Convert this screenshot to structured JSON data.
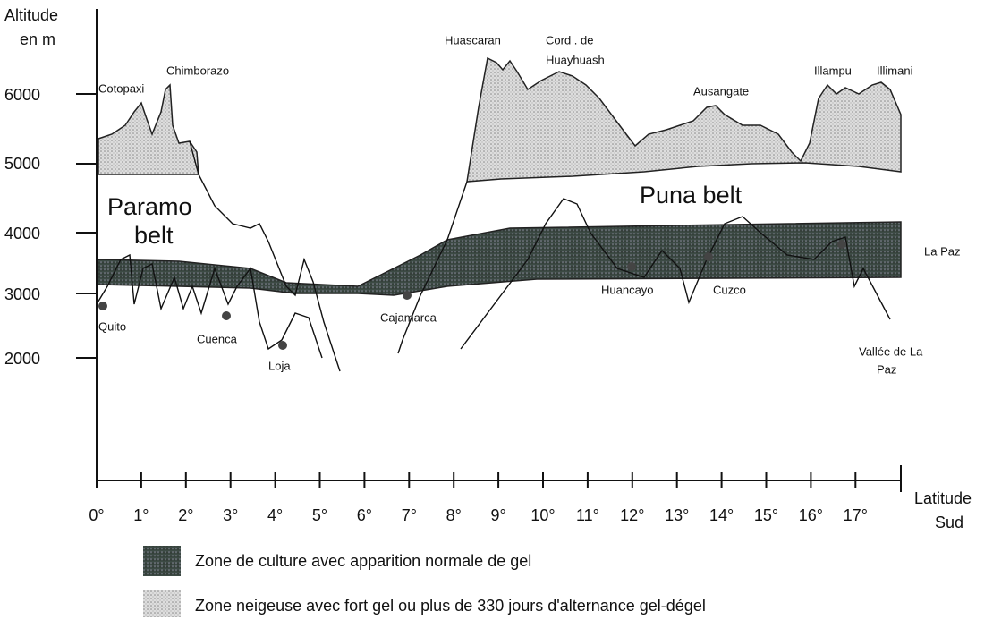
{
  "y_axis": {
    "title_lines": [
      "Altitude",
      "en m"
    ],
    "ticks": [
      "6000",
      "5000",
      "4000",
      "3000",
      "2000"
    ]
  },
  "x_axis": {
    "title_lines": [
      "Latitude",
      "Sud"
    ],
    "ticks": [
      "0°",
      "1°",
      "2°",
      "3°",
      "4°",
      "5°",
      "6°",
      "7°",
      "8°",
      "9°",
      "10°",
      "11°",
      "12°",
      "13°",
      "14°",
      "15°",
      "16°",
      "17°"
    ]
  },
  "peaks": [
    "Cotopaxi",
    "Chimborazo",
    "Huascaran",
    "Cord . de",
    "Huayhuash",
    "Ausangate",
    "Illampu",
    "Illimani"
  ],
  "belts": {
    "paramo": [
      "Paramo",
      "belt"
    ],
    "puna": "Puna belt"
  },
  "places": [
    "La Paz",
    "Quito",
    "Cuenca",
    "Loja",
    "Cajamarca",
    "Huancayo",
    "Cuzco",
    "Vallée de La",
    "Paz"
  ],
  "legend": [
    "Zone de culture avec apparition normale de gel",
    "Zone neigeuse avec fort gel ou plus de 330 jours d'alternance gel-dégel"
  ]
}
